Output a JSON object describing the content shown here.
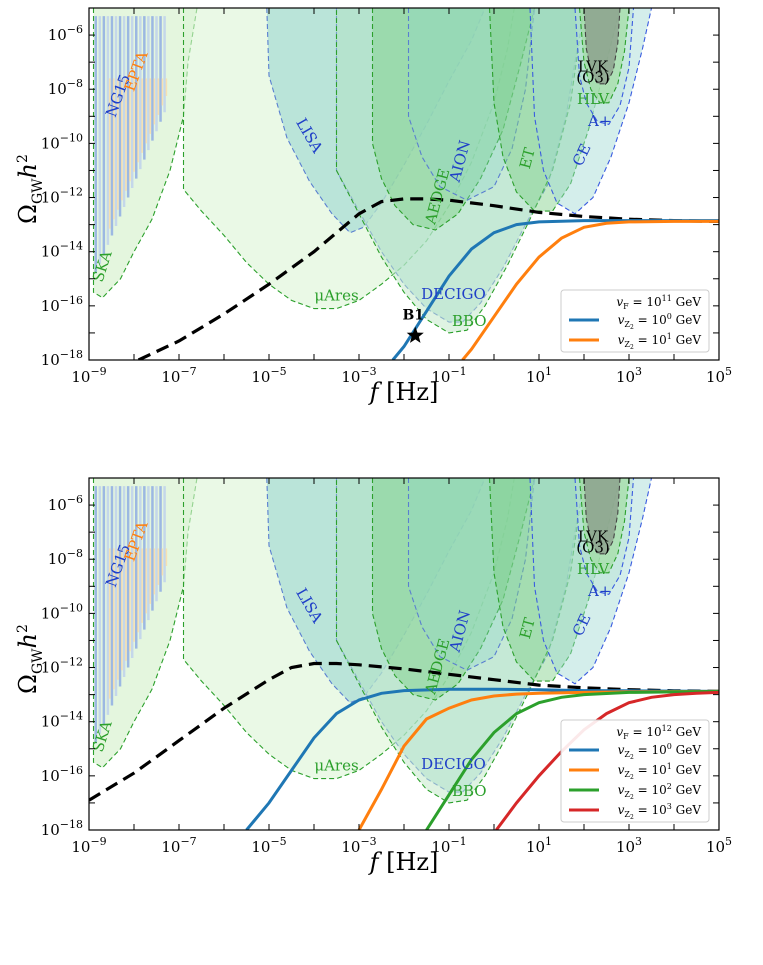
{
  "chart_data": [
    {
      "type": "line",
      "xlabel": "f [Hz]",
      "ylabel": "Ω_GW h²",
      "xscale": "log",
      "yscale": "log",
      "xlim": [
        1e-09,
        100000.0
      ],
      "ylim": [
        1e-18,
        1e-05
      ],
      "x_ticks": [
        "10^-9",
        "10^-7",
        "10^-5",
        "10^-3",
        "10^-1",
        "10^1",
        "10^3",
        "10^5"
      ],
      "y_ticks": [
        "10^-18",
        "10^-16",
        "10^-14",
        "10^-12",
        "10^-10",
        "10^-8",
        "10^-6"
      ],
      "legend": {
        "placement": "lower-right",
        "title": "v_F = 10^11 GeV"
      },
      "black_dashed": {
        "x": [
          -7.9,
          -7,
          -6,
          -5,
          -4,
          -3.5,
          -3,
          -2.5,
          -2,
          -1.5,
          -1,
          0,
          1,
          2,
          3,
          4,
          5
        ],
        "y": [
          -18,
          -17.3,
          -16.3,
          -15.2,
          -14.0,
          -13.3,
          -12.6,
          -12.15,
          -12.05,
          -12.05,
          -12.1,
          -12.3,
          -12.55,
          -12.7,
          -12.8,
          -12.85,
          -12.88
        ]
      },
      "series": [
        {
          "name": "v_Z2 = 10^0 GeV",
          "color": "#1f77b4",
          "x": [
            -2.25,
            -2,
            -1.5,
            -1,
            -0.5,
            0,
            0.5,
            1,
            2,
            3,
            4,
            5
          ],
          "y": [
            -18,
            -17.5,
            -16.2,
            -14.9,
            -13.9,
            -13.3,
            -13.0,
            -12.9,
            -12.85,
            -12.85,
            -12.85,
            -12.85
          ]
        },
        {
          "name": "v_Z2 = 10^1 GeV",
          "color": "#ff7f0e",
          "x": [
            -0.7,
            -0.5,
            0,
            0.5,
            1,
            1.5,
            2,
            2.5,
            3,
            4,
            5
          ],
          "y": [
            -18,
            -17.6,
            -16.4,
            -15.2,
            -14.2,
            -13.5,
            -13.1,
            -12.95,
            -12.9,
            -12.88,
            -12.88
          ]
        }
      ],
      "markers": [
        {
          "label": "B1",
          "x": -1.75,
          "y": -17.1
        }
      ],
      "detectors": [
        {
          "name": "SKA",
          "color": "#2ca02c"
        },
        {
          "name": "NG15",
          "color": "#1f3fc8"
        },
        {
          "name": "EPTA",
          "color": "#ff7f0e"
        },
        {
          "name": "μAres",
          "color": "#2ca02c"
        },
        {
          "name": "LISA",
          "color": "#1f3fc8"
        },
        {
          "name": "AEDGE",
          "color": "#2ca02c"
        },
        {
          "name": "AION",
          "color": "#1f3fc8"
        },
        {
          "name": "DECIGO",
          "color": "#1f3fc8"
        },
        {
          "name": "BBO",
          "color": "#2ca02c"
        },
        {
          "name": "ET",
          "color": "#2ca02c"
        },
        {
          "name": "CE",
          "color": "#1f3fc8"
        },
        {
          "name": "LVK",
          "color": "#000000"
        },
        {
          "name": "(O3)",
          "color": "#000000"
        },
        {
          "name": "HLV",
          "color": "#2ca02c"
        },
        {
          "name": "A+",
          "color": "#1f3fc8"
        }
      ]
    },
    {
      "type": "line",
      "xlabel": "f [Hz]",
      "ylabel": "Ω_GW h²",
      "xscale": "log",
      "yscale": "log",
      "xlim": [
        1e-09,
        100000.0
      ],
      "ylim": [
        1e-18,
        1e-05
      ],
      "x_ticks": [
        "10^-9",
        "10^-7",
        "10^-5",
        "10^-3",
        "10^-1",
        "10^1",
        "10^3",
        "10^5"
      ],
      "y_ticks": [
        "10^-18",
        "10^-16",
        "10^-14",
        "10^-12",
        "10^-10",
        "10^-8",
        "10^-6"
      ],
      "legend": {
        "placement": "lower-right",
        "title": "v_F = 10^12 GeV"
      },
      "black_dashed": {
        "x": [
          -9,
          -8,
          -7,
          -6,
          -5,
          -4.5,
          -4,
          -3.5,
          -3,
          -2,
          -1,
          0,
          1,
          2,
          3,
          4,
          5
        ],
        "y": [
          -16.9,
          -15.9,
          -14.7,
          -13.5,
          -12.45,
          -12.0,
          -11.85,
          -11.85,
          -11.9,
          -12.05,
          -12.25,
          -12.45,
          -12.65,
          -12.75,
          -12.82,
          -12.86,
          -12.88
        ]
      },
      "series": [
        {
          "name": "v_Z2 = 10^0 GeV",
          "color": "#1f77b4",
          "x": [
            -5.5,
            -5,
            -4.5,
            -4,
            -3.5,
            -3,
            -2.5,
            -2,
            -1,
            0,
            1,
            2,
            3,
            4,
            5
          ],
          "y": [
            -18,
            -17,
            -15.8,
            -14.6,
            -13.7,
            -13.2,
            -12.95,
            -12.85,
            -12.8,
            -12.8,
            -12.82,
            -12.85,
            -12.86,
            -12.87,
            -12.88
          ]
        },
        {
          "name": "v_Z2 = 10^1 GeV",
          "color": "#ff7f0e",
          "x": [
            -3,
            -2.5,
            -2,
            -1.5,
            -1,
            -0.5,
            0,
            0.5,
            1,
            2,
            3,
            4,
            5
          ],
          "y": [
            -18,
            -16.5,
            -14.9,
            -13.9,
            -13.5,
            -13.2,
            -13.05,
            -12.98,
            -12.95,
            -12.92,
            -12.9,
            -12.89,
            -12.88
          ]
        },
        {
          "name": "v_Z2 = 10^2 GeV",
          "color": "#2ca02c",
          "x": [
            -1.5,
            -1,
            -0.5,
            0,
            0.5,
            1,
            1.5,
            2,
            3,
            4,
            5
          ],
          "y": [
            -18,
            -16.7,
            -15.4,
            -14.4,
            -13.7,
            -13.3,
            -13.1,
            -13.0,
            -12.92,
            -12.9,
            -12.88
          ]
        },
        {
          "name": "v_Z2 = 10^3 GeV",
          "color": "#d62728",
          "x": [
            0.05,
            0.5,
            1,
            1.5,
            2,
            2.5,
            3,
            3.5,
            4,
            4.5,
            5
          ],
          "y": [
            -18,
            -17.0,
            -16.0,
            -15.1,
            -14.3,
            -13.7,
            -13.3,
            -13.1,
            -13.0,
            -12.95,
            -12.92
          ]
        }
      ],
      "markers": [],
      "detectors": [
        {
          "name": "SKA",
          "color": "#2ca02c"
        },
        {
          "name": "NG15",
          "color": "#1f3fc8"
        },
        {
          "name": "EPTA",
          "color": "#ff7f0e"
        },
        {
          "name": "μAres",
          "color": "#2ca02c"
        },
        {
          "name": "LISA",
          "color": "#1f3fc8"
        },
        {
          "name": "AEDGE",
          "color": "#2ca02c"
        },
        {
          "name": "AION",
          "color": "#1f3fc8"
        },
        {
          "name": "DECIGO",
          "color": "#1f3fc8"
        },
        {
          "name": "BBO",
          "color": "#2ca02c"
        },
        {
          "name": "ET",
          "color": "#2ca02c"
        },
        {
          "name": "CE",
          "color": "#1f3fc8"
        },
        {
          "name": "LVK",
          "color": "#000000"
        },
        {
          "name": "(O3)",
          "color": "#000000"
        },
        {
          "name": "HLV",
          "color": "#2ca02c"
        },
        {
          "name": "A+",
          "color": "#1f3fc8"
        }
      ]
    }
  ]
}
